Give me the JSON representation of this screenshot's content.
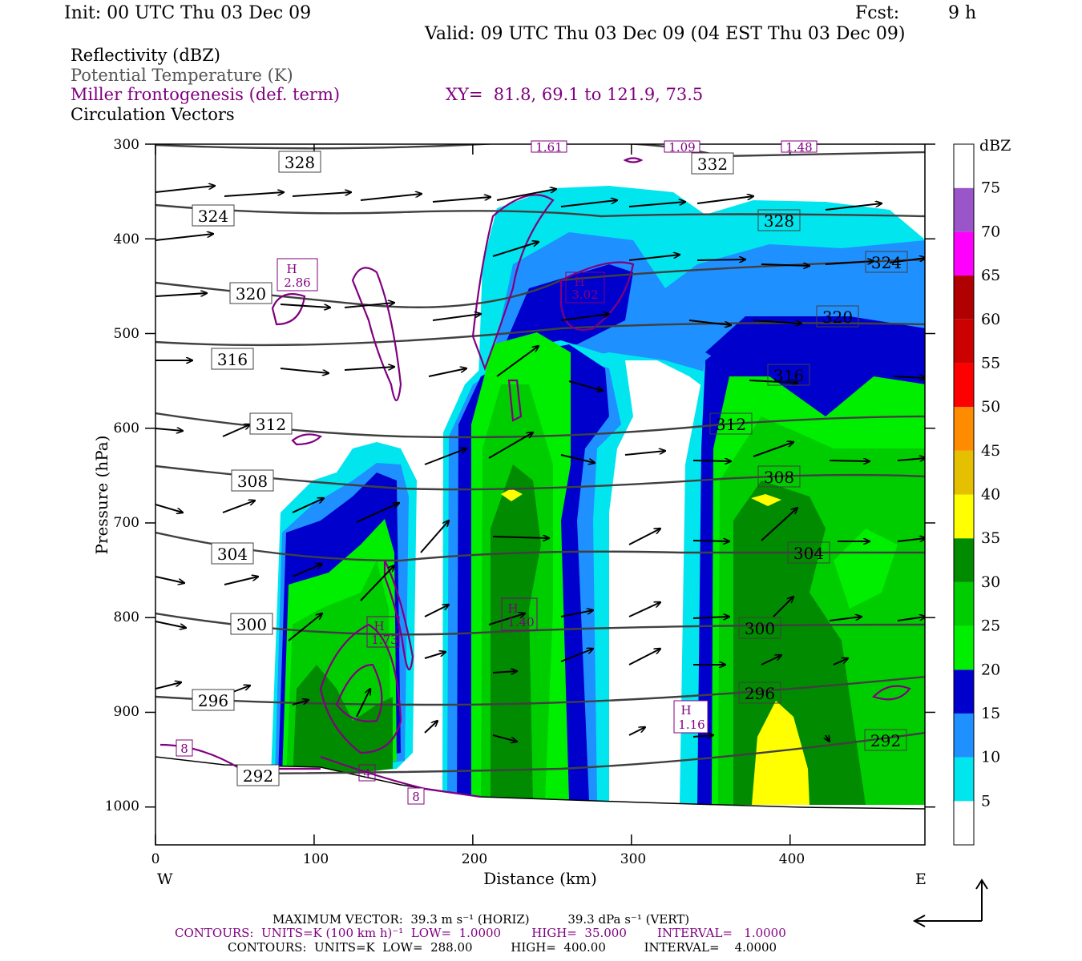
{
  "header": {
    "init": "Init: 00 UTC Thu 03 Dec 09",
    "fcst_label": "Fcst:",
    "fcst_value": "9 h",
    "valid": "Valid: 09 UTC Thu 03 Dec 09 (04 EST Thu 03 Dec 09)"
  },
  "legend": {
    "reflectivity": "Reflectivity (dBZ)",
    "theta": "Potential Temperature (K)",
    "miller": "Miller frontogenesis (def. term)",
    "xy": "XY=  81.8, 69.1 to 121.9, 73.5",
    "vectors": "Circulation Vectors"
  },
  "colors": {
    "theta_contour": "#404040",
    "frontogenesis_contour": "#800080",
    "vector": "#000000"
  },
  "chart_data": {
    "type": "cross-section",
    "xlabel": "Distance (km)",
    "ylabel": "Pressure (hPa)",
    "xlim": [
      0,
      485
    ],
    "ylim": [
      1040,
      300
    ],
    "x_ticks": [
      "0",
      "100",
      "200",
      "300",
      "400"
    ],
    "y_ticks": [
      "300",
      "400",
      "500",
      "600",
      "700",
      "800",
      "900",
      "1000"
    ],
    "west_label": "W",
    "east_label": "E",
    "colorbar": {
      "unit": "dBZ",
      "levels": [
        5,
        10,
        15,
        20,
        25,
        30,
        35,
        40,
        45,
        50,
        55,
        60,
        65,
        70,
        75
      ],
      "labels": [
        "5",
        "10",
        "15",
        "20",
        "25",
        "30",
        "35",
        "40",
        "45",
        "50",
        "55",
        "60",
        "65",
        "70",
        "75"
      ],
      "colors": [
        "#ffffff",
        "#00e5ee",
        "#1e90ff",
        "#0000cd",
        "#00ee00",
        "#00cd00",
        "#008b00",
        "#ffff00",
        "#e5c000",
        "#ff8c00",
        "#ff0000",
        "#cd0000",
        "#b00000",
        "#ff00ff",
        "#9a55c8",
        "#ffffff"
      ]
    },
    "theta_labels": [
      {
        "value": "328",
        "x": 90,
        "p": 319
      },
      {
        "value": "324",
        "x": 37,
        "p": 377
      },
      {
        "value": "320",
        "x": 60,
        "p": 458
      },
      {
        "value": "316",
        "x": 49,
        "p": 527
      },
      {
        "value": "312",
        "x": 73,
        "p": 596
      },
      {
        "value": "308",
        "x": 61,
        "p": 655
      },
      {
        "value": "304",
        "x": 49,
        "p": 733
      },
      {
        "value": "300",
        "x": 61,
        "p": 808
      },
      {
        "value": "296",
        "x": 37,
        "p": 888
      },
      {
        "value": "292",
        "x": 50,
        "p": 963
      },
      {
        "value": "332",
        "x": 350,
        "p": 321
      },
      {
        "value": "328",
        "x": 393,
        "p": 379
      },
      {
        "value": "324",
        "x": 475,
        "p": 424
      },
      {
        "value": "320",
        "x": 430,
        "p": 483
      },
      {
        "value": "316",
        "x": 400,
        "p": 545
      },
      {
        "value": "312",
        "x": 363,
        "p": 596
      },
      {
        "value": "308",
        "x": 393,
        "p": 651
      },
      {
        "value": "304",
        "x": 412,
        "p": 732
      },
      {
        "value": "300",
        "x": 383,
        "p": 813
      },
      {
        "value": "296",
        "x": 383,
        "p": 878
      },
      {
        "value": "292",
        "x": 458,
        "p": 936
      }
    ],
    "maxima": [
      {
        "label": "H",
        "value": "2.86",
        "x": 90,
        "p": 442
      },
      {
        "label": "H",
        "value": "3.02",
        "x": 270,
        "p": 455
      },
      {
        "label": "H",
        "value": "1.40",
        "x": 229,
        "p": 800
      },
      {
        "label": "H",
        "value": "1.73",
        "x": 140,
        "p": 817
      },
      {
        "label": "H",
        "value": "1.16",
        "x": 333,
        "p": 909
      }
    ],
    "top_edge_values": [
      "1.61",
      "1.09",
      "1.48"
    ],
    "small_labels": [
      "8",
      "4",
      "8"
    ]
  },
  "footer": {
    "max_vector": "MAXIMUM VECTOR:  39.3 m s⁻¹ (HORIZ)          39.3 dPa s⁻¹ (VERT)",
    "contours_fg": "CONTOURS:  UNITS=K (100 km h)⁻¹  LOW=  1.0000        HIGH=  35.000        INTERVAL=   1.0000",
    "contours_theta": "CONTOURS:  UNITS=K  LOW=  288.00          HIGH=  400.00          INTERVAL=    4.0000"
  }
}
